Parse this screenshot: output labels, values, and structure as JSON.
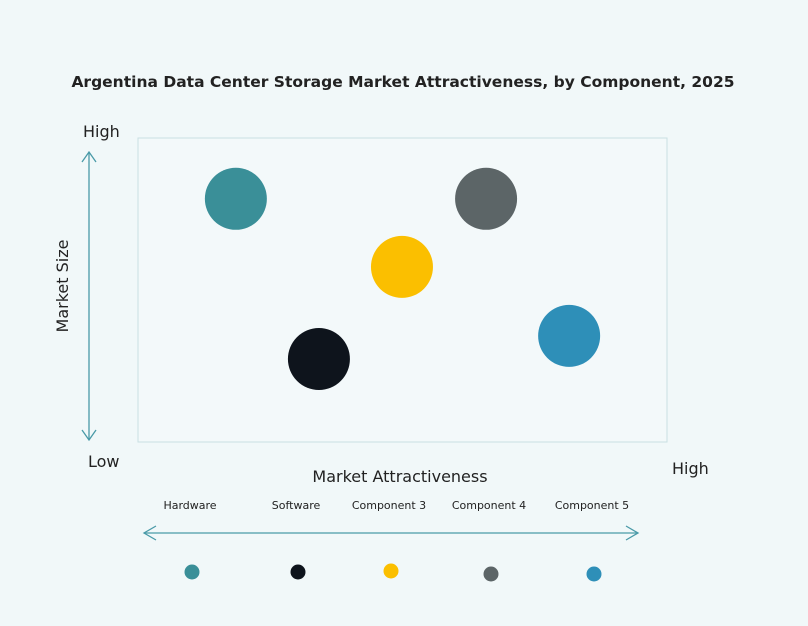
{
  "chart_data": {
    "type": "scatter",
    "title": "Argentina Data Center Storage Market Attractiveness,  by Component, 2025",
    "xlabel": "Market Attractiveness",
    "ylabel": "Market Size",
    "x_low_label": "Low",
    "x_high_label": "High",
    "y_high_label": "High",
    "xlim": [
      0,
      100
    ],
    "ylim": [
      0,
      100
    ],
    "grid": false,
    "legend_placement": "bottom",
    "series": [
      {
        "name": "Hardware",
        "x": 18.5,
        "y": 80,
        "color": "#3a8f98"
      },
      {
        "name": "Software",
        "x": 34.2,
        "y": 27.3,
        "color": "#0e141c"
      },
      {
        "name": "Component 3",
        "x": 49.9,
        "y": 57.6,
        "color": "#fbbf00"
      },
      {
        "name": "Component 4",
        "x": 65.8,
        "y": 80,
        "color": "#5c6567"
      },
      {
        "name": "Component 5",
        "x": 81.5,
        "y": 34.9,
        "color": "#2e8fb8"
      }
    ],
    "axis_color": "#4a9aa8"
  }
}
